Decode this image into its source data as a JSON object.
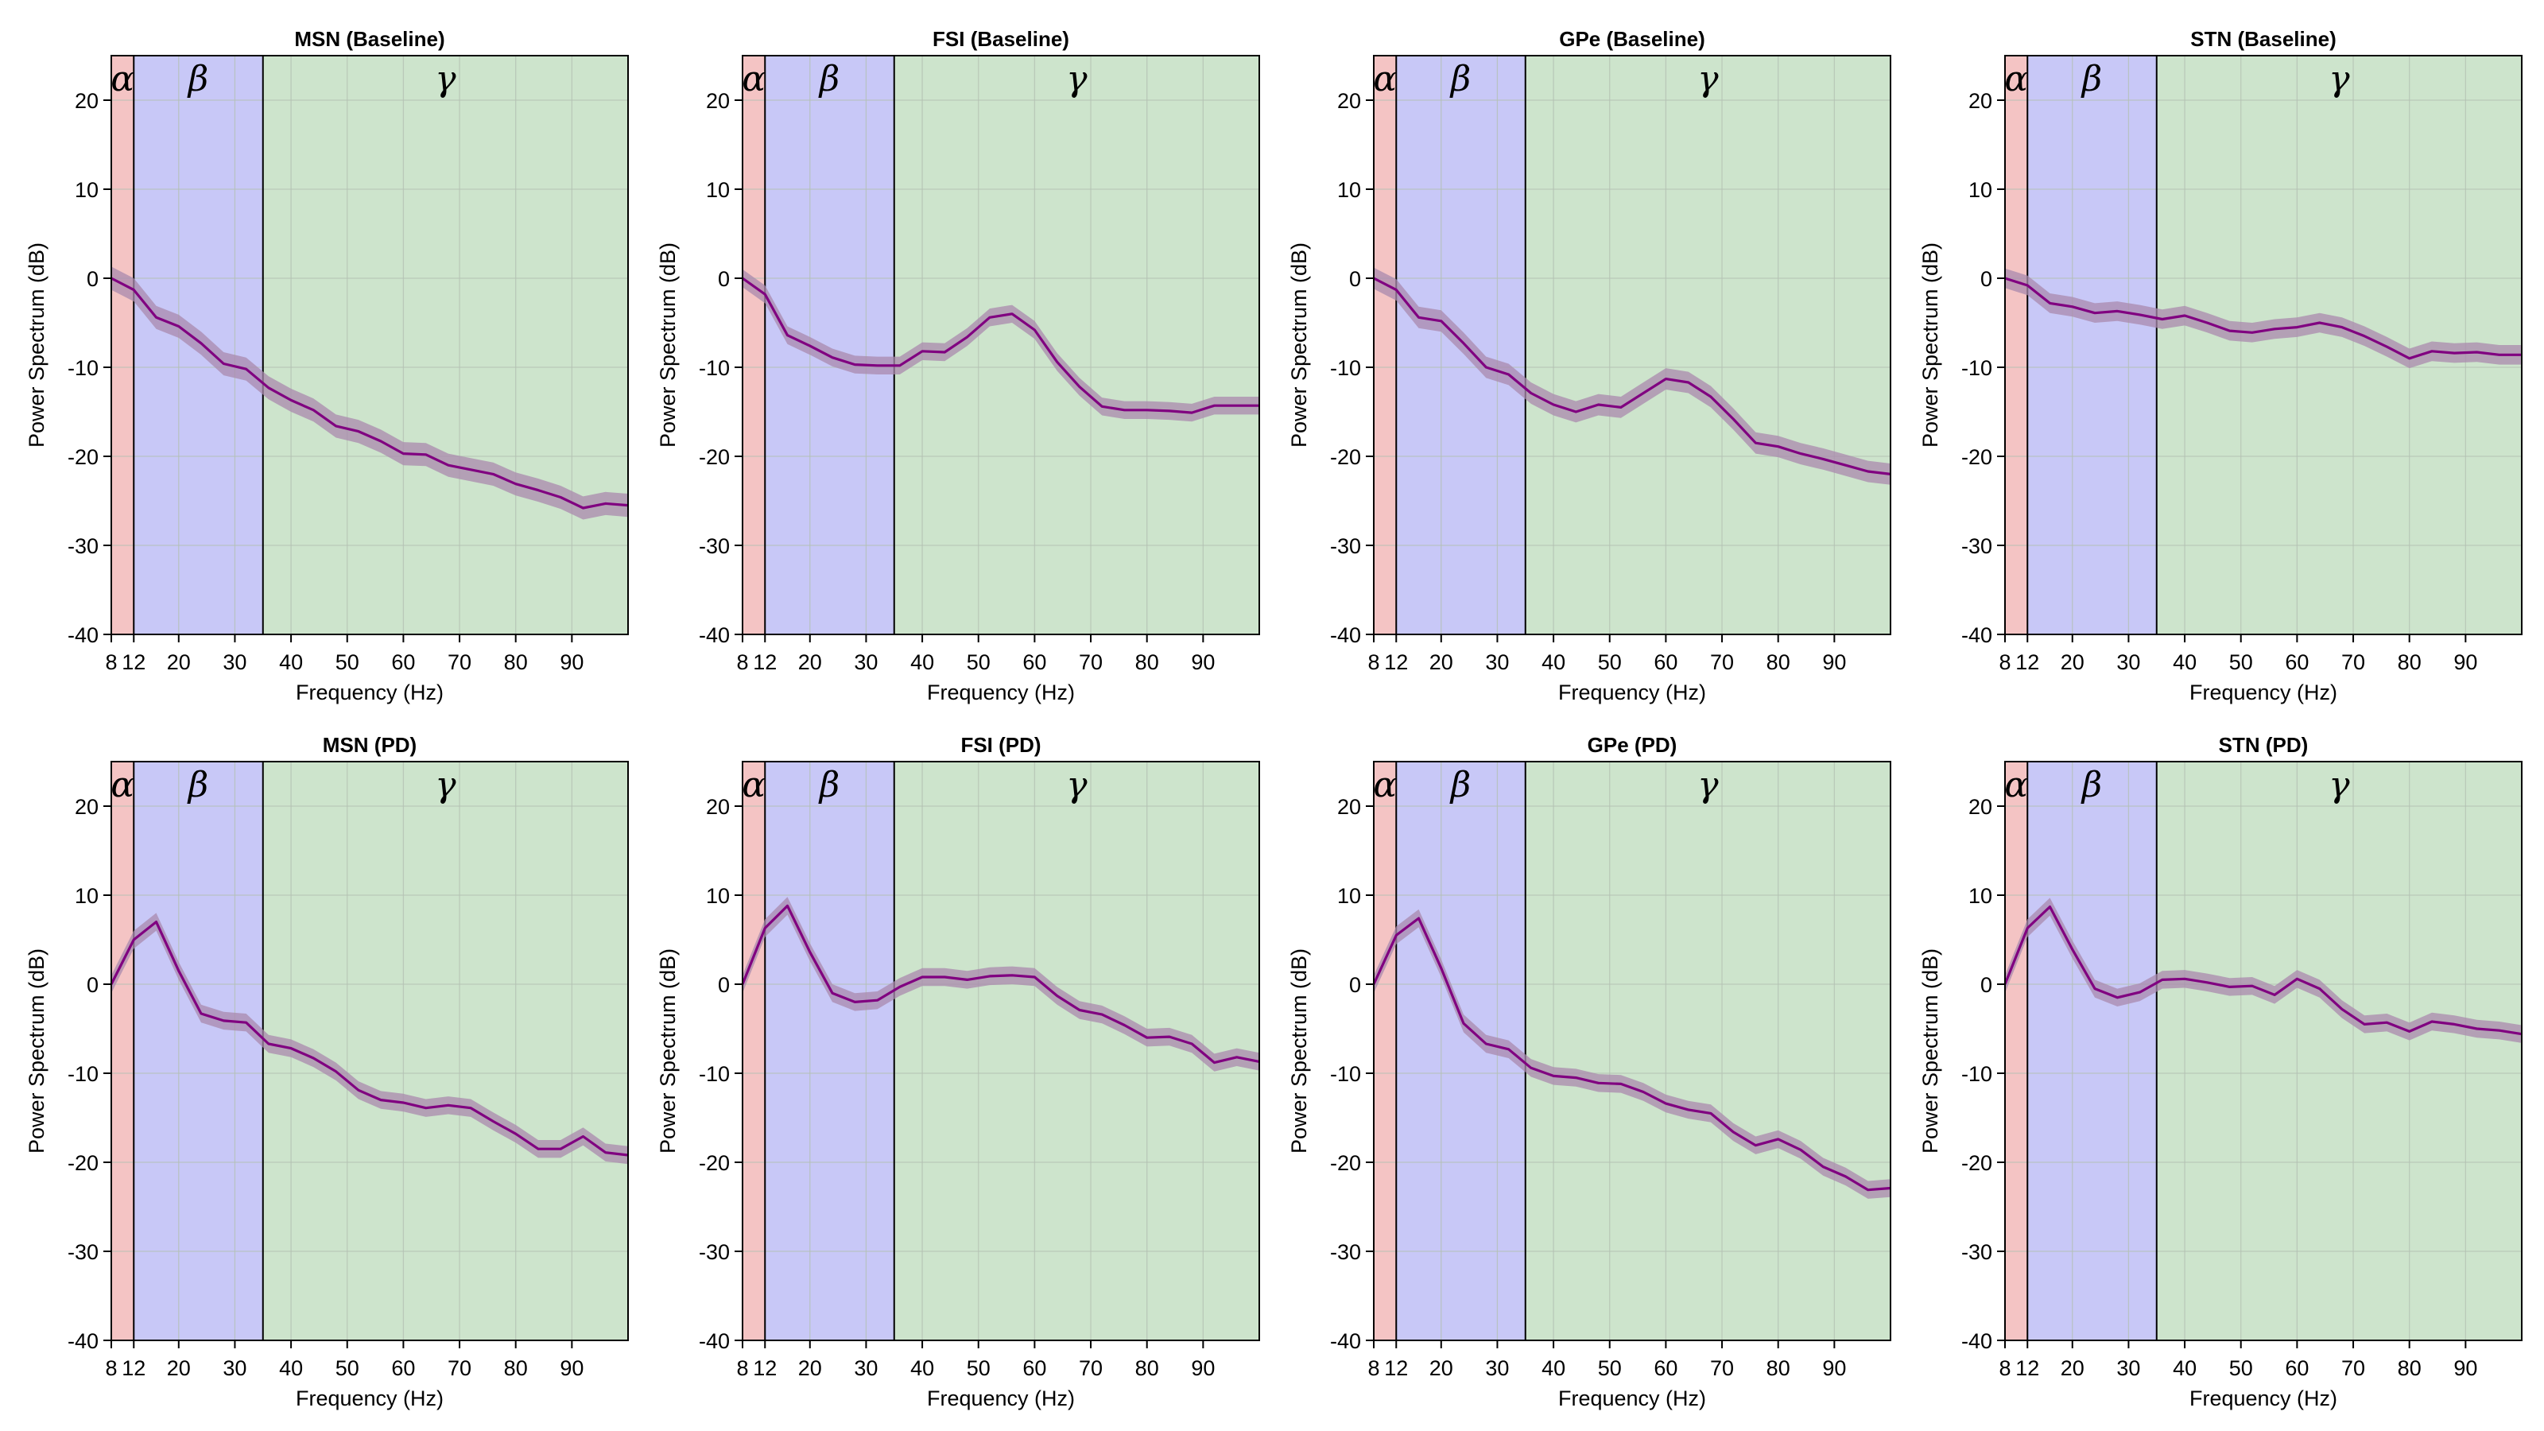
{
  "figure": {
    "panel_rows": 2,
    "panel_cols": 4,
    "colors": {
      "alpha_band": "#f4c4c4",
      "beta_band": "#c8c8f7",
      "gamma_band": "#cde4cc",
      "grid": "#b3c0b3",
      "line": "#800080",
      "shade": "#a98aad",
      "axis": "#000000"
    },
    "bands": [
      {
        "symbol": "α",
        "from": 8,
        "to": 12
      },
      {
        "symbol": "β",
        "from": 12,
        "to": 35
      },
      {
        "symbol": "γ",
        "from": 35,
        "to": 100
      }
    ]
  },
  "chart_data": [
    {
      "type": "line",
      "title": "MSN (Baseline)",
      "xlabel": "Frequency (Hz)",
      "ylabel": "Power Spectrum (dB)",
      "xlim": [
        8,
        100
      ],
      "ylim": [
        -40,
        25
      ],
      "xticks": [
        8,
        12,
        20,
        30,
        40,
        50,
        60,
        70,
        80,
        90
      ],
      "yticks": [
        -40,
        -30,
        -20,
        -10,
        0,
        10,
        20
      ],
      "grid": true,
      "x": [
        8,
        12,
        16,
        20,
        24,
        28,
        32,
        36,
        40,
        44,
        48,
        52,
        56,
        60,
        64,
        68,
        72,
        76,
        80,
        84,
        88,
        92,
        96,
        100
      ],
      "y": [
        0,
        -1.3,
        -4.4,
        -5.4,
        -7.3,
        -9.6,
        -10.2,
        -12.3,
        -13.7,
        -14.8,
        -16.6,
        -17.2,
        -18.3,
        -19.7,
        -19.8,
        -21.0,
        -21.5,
        -22.0,
        -23.1,
        -23.8,
        -24.6,
        -25.8,
        -25.3,
        -25.5
      ],
      "band": 1.3
    },
    {
      "type": "line",
      "title": "FSI (Baseline)",
      "xlabel": "Frequency (Hz)",
      "ylabel": "Power Spectrum (dB)",
      "xlim": [
        8,
        100
      ],
      "ylim": [
        -40,
        25
      ],
      "xticks": [
        8,
        12,
        20,
        30,
        40,
        50,
        60,
        70,
        80,
        90
      ],
      "yticks": [
        -40,
        -30,
        -20,
        -10,
        0,
        10,
        20
      ],
      "grid": true,
      "x": [
        8,
        12,
        16,
        20,
        24,
        28,
        32,
        36,
        40,
        44,
        48,
        52,
        56,
        60,
        64,
        68,
        72,
        76,
        80,
        84,
        88,
        92,
        96,
        100
      ],
      "y": [
        0,
        -1.8,
        -6.4,
        -7.6,
        -8.9,
        -9.7,
        -9.8,
        -9.8,
        -8.2,
        -8.3,
        -6.6,
        -4.4,
        -4.0,
        -5.8,
        -9.4,
        -12.2,
        -14.4,
        -14.8,
        -14.8,
        -14.9,
        -15.1,
        -14.3,
        -14.3,
        -14.3
      ],
      "band": 1.0
    },
    {
      "type": "line",
      "title": "GPe (Baseline)",
      "xlabel": "Frequency (Hz)",
      "ylabel": "Power Spectrum (dB)",
      "xlim": [
        8,
        100
      ],
      "ylim": [
        -40,
        25
      ],
      "xticks": [
        8,
        12,
        20,
        30,
        40,
        50,
        60,
        70,
        80,
        90
      ],
      "yticks": [
        -40,
        -30,
        -20,
        -10,
        0,
        10,
        20
      ],
      "grid": true,
      "x": [
        8,
        12,
        16,
        20,
        24,
        28,
        32,
        36,
        40,
        44,
        48,
        52,
        56,
        60,
        64,
        68,
        72,
        76,
        80,
        84,
        88,
        92,
        96,
        100
      ],
      "y": [
        0,
        -1.3,
        -4.4,
        -4.8,
        -7.3,
        -10.0,
        -10.8,
        -12.9,
        -14.2,
        -15.0,
        -14.2,
        -14.5,
        -12.9,
        -11.3,
        -11.7,
        -13.3,
        -15.8,
        -18.5,
        -18.9,
        -19.7,
        -20.3,
        -21.0,
        -21.7,
        -22.0
      ],
      "band": 1.2
    },
    {
      "type": "line",
      "title": "STN (Baseline)",
      "xlabel": "Frequency (Hz)",
      "ylabel": "Power Spectrum (dB)",
      "xlim": [
        8,
        100
      ],
      "ylim": [
        -40,
        25
      ],
      "xticks": [
        8,
        12,
        20,
        30,
        40,
        50,
        60,
        70,
        80,
        90
      ],
      "yticks": [
        -40,
        -30,
        -20,
        -10,
        0,
        10,
        20
      ],
      "grid": true,
      "x": [
        8,
        12,
        16,
        20,
        24,
        28,
        32,
        36,
        40,
        44,
        48,
        52,
        56,
        60,
        64,
        68,
        72,
        76,
        80,
        84,
        88,
        92,
        96,
        100
      ],
      "y": [
        0,
        -0.8,
        -2.8,
        -3.2,
        -3.9,
        -3.7,
        -4.1,
        -4.6,
        -4.2,
        -5.0,
        -5.9,
        -6.1,
        -5.7,
        -5.5,
        -5.0,
        -5.5,
        -6.5,
        -7.7,
        -9.0,
        -8.2,
        -8.4,
        -8.3,
        -8.6,
        -8.6
      ],
      "band": 1.1
    },
    {
      "type": "line",
      "title": "MSN (PD)",
      "xlabel": "Frequency (Hz)",
      "ylabel": "Power Spectrum (dB)",
      "xlim": [
        8,
        100
      ],
      "ylim": [
        -40,
        25
      ],
      "xticks": [
        8,
        12,
        20,
        30,
        40,
        50,
        60,
        70,
        80,
        90
      ],
      "yticks": [
        -40,
        -30,
        -20,
        -10,
        0,
        10,
        20
      ],
      "grid": true,
      "x": [
        8,
        12,
        16,
        20,
        24,
        28,
        32,
        36,
        40,
        44,
        48,
        52,
        56,
        60,
        64,
        68,
        72,
        76,
        80,
        84,
        88,
        92,
        96,
        100
      ],
      "y": [
        0,
        5.0,
        7.0,
        1.5,
        -3.3,
        -4.1,
        -4.3,
        -6.7,
        -7.2,
        -8.3,
        -9.8,
        -11.9,
        -13.0,
        -13.3,
        -13.9,
        -13.6,
        -13.9,
        -15.4,
        -16.8,
        -18.5,
        -18.5,
        -17.1,
        -18.9,
        -19.2
      ],
      "band": 1.0
    },
    {
      "type": "line",
      "title": "FSI (PD)",
      "xlabel": "Frequency (Hz)",
      "ylabel": "Power Spectrum (dB)",
      "xlim": [
        8,
        100
      ],
      "ylim": [
        -40,
        25
      ],
      "xticks": [
        8,
        12,
        20,
        30,
        40,
        50,
        60,
        70,
        80,
        90
      ],
      "yticks": [
        -40,
        -30,
        -20,
        -10,
        0,
        10,
        20
      ],
      "grid": true,
      "x": [
        8,
        12,
        16,
        20,
        24,
        28,
        32,
        36,
        40,
        44,
        48,
        52,
        56,
        60,
        64,
        68,
        72,
        76,
        80,
        84,
        88,
        92,
        96,
        100
      ],
      "y": [
        0,
        6.3,
        8.8,
        3.6,
        -1.0,
        -2.0,
        -1.8,
        -0.3,
        0.8,
        0.8,
        0.5,
        0.9,
        1.0,
        0.8,
        -1.3,
        -2.9,
        -3.4,
        -4.6,
        -6.0,
        -5.9,
        -6.7,
        -8.8,
        -8.2,
        -8.7
      ],
      "band": 1.0
    },
    {
      "type": "line",
      "title": "GPe (PD)",
      "xlabel": "Frequency (Hz)",
      "ylabel": "Power Spectrum (dB)",
      "xlim": [
        8,
        100
      ],
      "ylim": [
        -40,
        25
      ],
      "xticks": [
        8,
        12,
        20,
        30,
        40,
        50,
        60,
        70,
        80,
        90
      ],
      "yticks": [
        -40,
        -30,
        -20,
        -10,
        0,
        10,
        20
      ],
      "grid": true,
      "x": [
        8,
        12,
        16,
        20,
        24,
        28,
        32,
        36,
        40,
        44,
        48,
        52,
        56,
        60,
        64,
        68,
        72,
        76,
        80,
        84,
        88,
        92,
        96,
        100
      ],
      "y": [
        0,
        5.5,
        7.4,
        1.8,
        -4.4,
        -6.7,
        -7.3,
        -9.4,
        -10.3,
        -10.5,
        -11.1,
        -11.2,
        -12.1,
        -13.4,
        -14.1,
        -14.5,
        -16.6,
        -18.1,
        -17.4,
        -18.6,
        -20.5,
        -21.6,
        -23.1,
        -22.9
      ],
      "band": 1.0
    },
    {
      "type": "line",
      "title": "STN (PD)",
      "xlabel": "Frequency (Hz)",
      "ylabel": "Power Spectrum (dB)",
      "xlim": [
        8,
        100
      ],
      "ylim": [
        -40,
        25
      ],
      "xticks": [
        8,
        12,
        20,
        30,
        40,
        50,
        60,
        70,
        80,
        90
      ],
      "yticks": [
        -40,
        -30,
        -20,
        -10,
        0,
        10,
        20
      ],
      "grid": true,
      "x": [
        8,
        12,
        16,
        20,
        24,
        28,
        32,
        36,
        40,
        44,
        48,
        52,
        56,
        60,
        64,
        68,
        72,
        76,
        80,
        84,
        88,
        92,
        96,
        100
      ],
      "y": [
        0,
        6.3,
        8.7,
        3.9,
        -0.5,
        -1.5,
        -0.9,
        0.5,
        0.6,
        0.2,
        -0.3,
        -0.2,
        -1.2,
        0.6,
        -0.5,
        -2.8,
        -4.5,
        -4.3,
        -5.3,
        -4.2,
        -4.5,
        -5.0,
        -5.2,
        -5.6
      ],
      "band": 1.0
    }
  ]
}
